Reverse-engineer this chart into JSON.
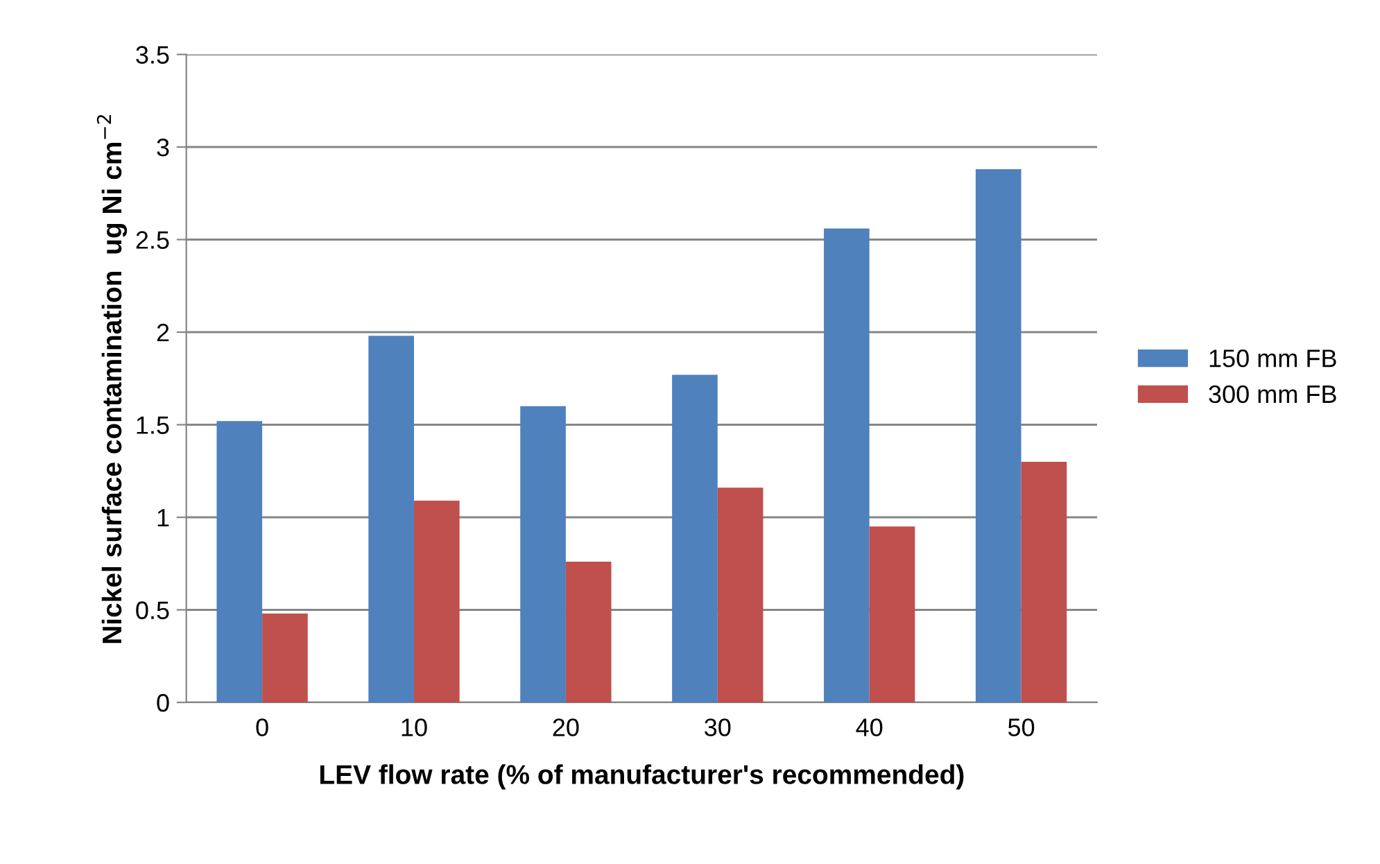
{
  "chart_data": {
    "type": "bar",
    "xlabel": "LEV flow rate (% of manufacturer's recommended)",
    "ylabel": "Nickel surface contamination  ug Ni cm$^{−2}$",
    "categories": [
      "0",
      "10",
      "20",
      "30",
      "40",
      "50"
    ],
    "series": [
      {
        "name": "150 mm FB",
        "color": "#4f81bd",
        "values": [
          1.52,
          1.98,
          1.6,
          1.77,
          2.56,
          2.88
        ]
      },
      {
        "name": "300 mm FB",
        "color": "#c0504d",
        "values": [
          0.48,
          1.09,
          0.76,
          1.16,
          0.95,
          1.3
        ]
      }
    ],
    "ylim": [
      0,
      3.5
    ],
    "yticks": [
      0,
      0.5,
      1,
      1.5,
      2,
      2.5,
      3,
      3.5
    ],
    "grid": "y",
    "legend": "right"
  }
}
